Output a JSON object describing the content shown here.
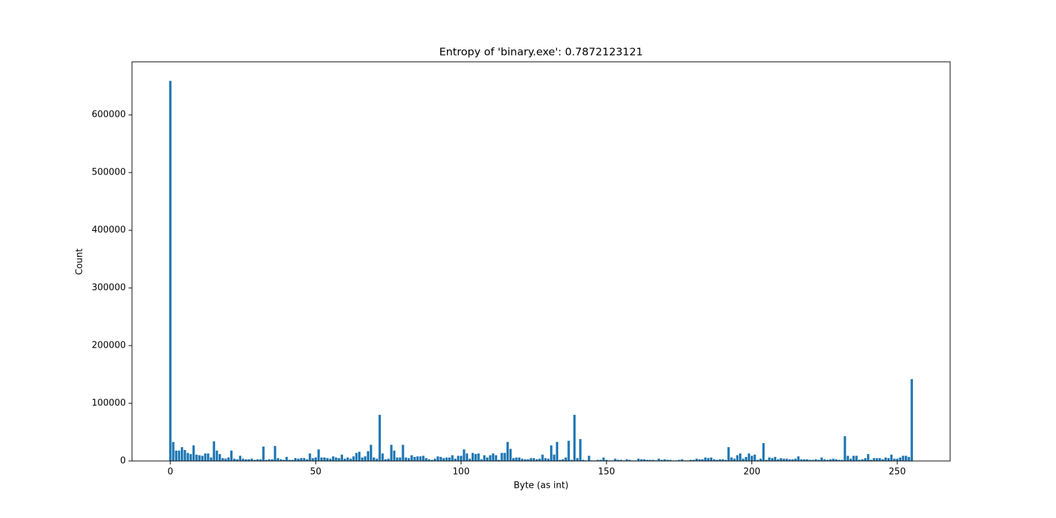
{
  "chart_data": {
    "type": "bar",
    "title": "Entropy of 'binary.exe': 0.7872123121",
    "x_label": "Byte (as int)",
    "y_label": "Count",
    "color": "#1f77b4",
    "x": [
      0,
      1,
      2,
      3,
      4,
      5,
      6,
      7,
      8,
      9,
      10,
      11,
      12,
      13,
      14,
      15,
      16,
      17,
      18,
      19,
      20,
      21,
      22,
      23,
      24,
      25,
      26,
      27,
      28,
      29,
      30,
      31,
      32,
      33,
      34,
      35,
      36,
      37,
      38,
      39,
      40,
      41,
      42,
      43,
      44,
      45,
      46,
      47,
      48,
      49,
      50,
      51,
      52,
      53,
      54,
      55,
      56,
      57,
      58,
      59,
      60,
      61,
      62,
      63,
      64,
      65,
      66,
      67,
      68,
      69,
      70,
      71,
      72,
      73,
      74,
      75,
      76,
      77,
      78,
      79,
      80,
      81,
      82,
      83,
      84,
      85,
      86,
      87,
      88,
      89,
      90,
      91,
      92,
      93,
      94,
      95,
      96,
      97,
      98,
      99,
      100,
      101,
      102,
      103,
      104,
      105,
      106,
      107,
      108,
      109,
      110,
      111,
      112,
      113,
      114,
      115,
      116,
      117,
      118,
      119,
      120,
      121,
      122,
      123,
      124,
      125,
      126,
      127,
      128,
      129,
      130,
      131,
      132,
      133,
      134,
      135,
      136,
      137,
      138,
      139,
      140,
      141,
      142,
      143,
      144,
      145,
      146,
      147,
      148,
      149,
      150,
      151,
      152,
      153,
      154,
      155,
      156,
      157,
      158,
      159,
      160,
      161,
      162,
      163,
      164,
      165,
      166,
      167,
      168,
      169,
      170,
      171,
      172,
      173,
      174,
      175,
      176,
      177,
      178,
      179,
      180,
      181,
      182,
      183,
      184,
      185,
      186,
      187,
      188,
      189,
      190,
      191,
      192,
      193,
      194,
      195,
      196,
      197,
      198,
      199,
      200,
      201,
      202,
      203,
      204,
      205,
      206,
      207,
      208,
      209,
      210,
      211,
      212,
      213,
      214,
      215,
      216,
      217,
      218,
      219,
      220,
      221,
      222,
      223,
      224,
      225,
      226,
      227,
      228,
      229,
      230,
      231,
      232,
      233,
      234,
      235,
      236,
      237,
      238,
      239,
      240,
      241,
      242,
      243,
      244,
      245,
      246,
      247,
      248,
      249,
      250,
      251,
      252,
      253,
      254,
      255
    ],
    "values": [
      659000,
      33000,
      18000,
      18000,
      24000,
      19000,
      14000,
      12000,
      27000,
      11000,
      10000,
      9000,
      13000,
      13000,
      6000,
      34000,
      18000,
      12000,
      5000,
      4000,
      6000,
      18000,
      4000,
      3000,
      9000,
      4000,
      3000,
      3000,
      4000,
      2000,
      3000,
      3000,
      25000,
      2000,
      3000,
      3000,
      26000,
      5000,
      3000,
      2000,
      7000,
      2000,
      2000,
      5000,
      4000,
      5000,
      5000,
      3000,
      13000,
      5000,
      6000,
      20000,
      6000,
      6000,
      5000,
      4000,
      8000,
      6000,
      5000,
      11000,
      4000,
      6000,
      4000,
      8000,
      14000,
      16000,
      6000,
      8000,
      17000,
      28000,
      6000,
      4000,
      80000,
      13000,
      3000,
      4000,
      28000,
      18000,
      6000,
      6000,
      28000,
      6000,
      5000,
      10000,
      7000,
      8000,
      8000,
      9000,
      5000,
      3000,
      2000,
      4000,
      8000,
      7000,
      5000,
      6000,
      6000,
      10000,
      4000,
      9000,
      9000,
      20000,
      13000,
      4000,
      14000,
      12000,
      13000,
      3000,
      10000,
      6000,
      10000,
      13000,
      10000,
      2000,
      14000,
      14000,
      33000,
      21000,
      5000,
      6000,
      6000,
      4000,
      3000,
      3000,
      5000,
      5000,
      3000,
      4000,
      11000,
      5000,
      4000,
      27000,
      11000,
      33000,
      2000,
      3000,
      6000,
      35000,
      2000,
      80000,
      5000,
      38000,
      2000,
      1000,
      9000,
      1000,
      1000,
      2000,
      2000,
      6000,
      2000,
      1000,
      1000,
      4000,
      2000,
      2000,
      1000,
      3000,
      2000,
      1000,
      1000,
      4000,
      3000,
      3000,
      2000,
      2000,
      2000,
      1000,
      4000,
      2000,
      3000,
      2000,
      2000,
      1000,
      1000,
      2000,
      3000,
      1000,
      1000,
      2000,
      2000,
      4000,
      3000,
      3000,
      6000,
      5000,
      6000,
      3000,
      2000,
      3000,
      3000,
      2000,
      24000,
      6000,
      4000,
      10000,
      13000,
      4000,
      7000,
      13000,
      9000,
      11000,
      2000,
      4000,
      31000,
      2000,
      6000,
      5000,
      7000,
      3000,
      5000,
      4000,
      4000,
      3000,
      3000,
      4000,
      8000,
      3000,
      3000,
      3000,
      2000,
      2000,
      3000,
      2000,
      6000,
      3000,
      2000,
      3000,
      4000,
      3000,
      2000,
      2000,
      43000,
      9000,
      4000,
      9000,
      9000,
      2000,
      3000,
      5000,
      12000,
      2000,
      5000,
      5000,
      5000,
      3000,
      6000,
      5000,
      11000,
      4000,
      4000,
      6000,
      9000,
      9000,
      7000,
      142000
    ],
    "xlim": [
      -13.19,
      268.19
    ],
    "ylim": [
      0,
      692000
    ],
    "xticks": [
      0,
      50,
      100,
      150,
      200,
      250
    ],
    "yticks": [
      0,
      100000,
      200000,
      300000,
      400000,
      500000,
      600000
    ]
  }
}
